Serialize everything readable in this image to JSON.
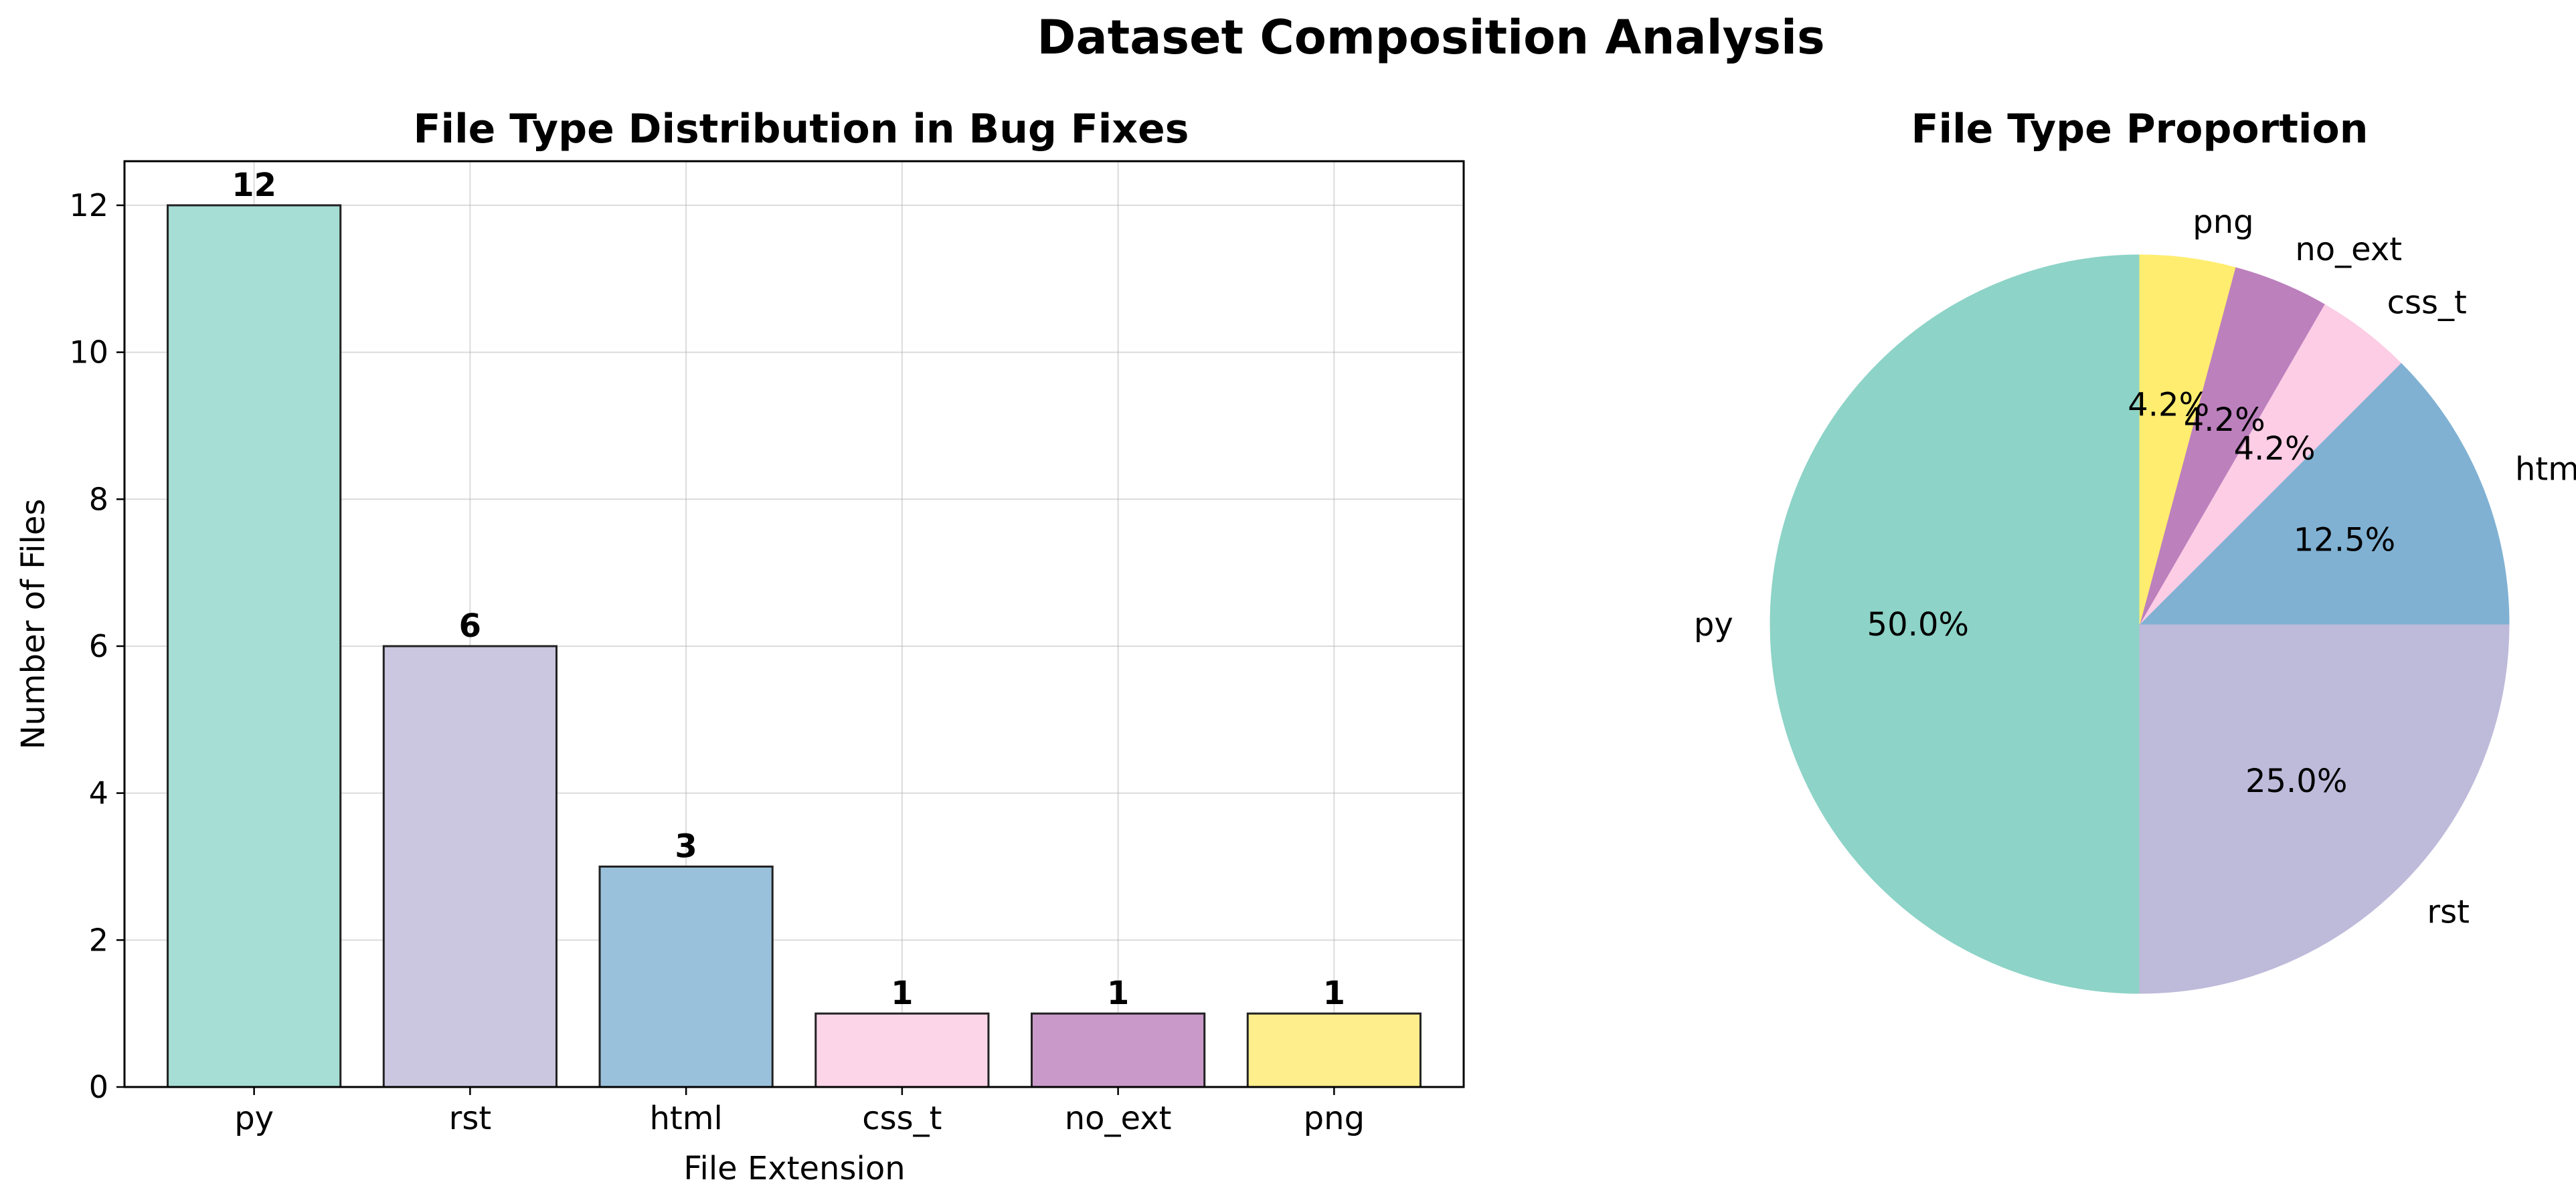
{
  "figure": {
    "title": "Dataset Composition Analysis"
  },
  "chart_data": [
    {
      "type": "bar",
      "title": "File Type Distribution in Bug Fixes",
      "xlabel": "File Extension",
      "ylabel": "Number of Files",
      "categories": [
        "py",
        "rst",
        "html",
        "css_t",
        "no_ext",
        "png"
      ],
      "values": [
        12,
        6,
        3,
        1,
        1,
        1
      ],
      "data_labels": [
        "12",
        "6",
        "3",
        "1",
        "1",
        "1"
      ],
      "colors": [
        "#a6ddd4",
        "#cbc7e1",
        "#9ac1db",
        "#fcd5e8",
        "#c99ac9",
        "#ffee8c"
      ],
      "ylim": [
        0,
        12.6
      ],
      "yticks": [
        0,
        2,
        4,
        6,
        8,
        10,
        12
      ],
      "ytick_labels": [
        "0",
        "2",
        "4",
        "6",
        "8",
        "10",
        "12"
      ],
      "grid": true,
      "legend": "none"
    },
    {
      "type": "pie",
      "title": "File Type Proportion",
      "labels": [
        "py",
        "rst",
        "html",
        "css_t",
        "no_ext",
        "png"
      ],
      "values": [
        12,
        6,
        3,
        1,
        1,
        1
      ],
      "pct_labels": [
        "50.0%",
        "25.0%",
        "12.5%",
        "4.2%",
        "4.2%",
        "4.2%"
      ],
      "colors": [
        "#8dd3c7",
        "#bebada",
        "#80b1d3",
        "#fccde5",
        "#bc80bd",
        "#ffed6f"
      ],
      "start_angle_deg": 90,
      "direction": "counterclockwise",
      "legend": "none"
    }
  ]
}
